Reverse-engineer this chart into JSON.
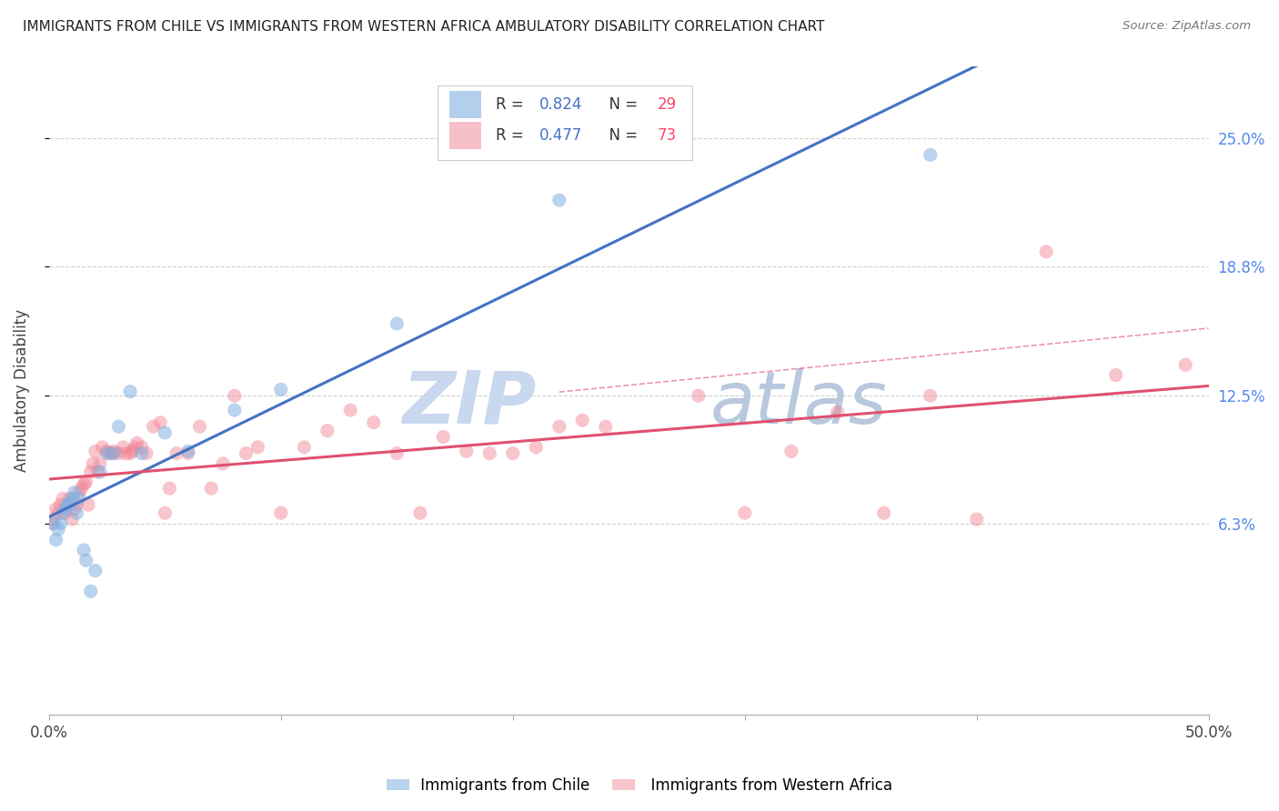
{
  "title": "IMMIGRANTS FROM CHILE VS IMMIGRANTS FROM WESTERN AFRICA AMBULATORY DISABILITY CORRELATION CHART",
  "source": "Source: ZipAtlas.com",
  "ylabel": "Ambulatory Disability",
  "xlim": [
    0.0,
    0.5
  ],
  "ylim": [
    -0.03,
    0.285
  ],
  "xtick_positions": [
    0.0,
    0.1,
    0.2,
    0.3,
    0.4,
    0.5
  ],
  "xticklabels": [
    "0.0%",
    "",
    "",
    "",
    "",
    "50.0%"
  ],
  "ytick_positions": [
    0.063,
    0.125,
    0.188,
    0.25
  ],
  "ytick_labels": [
    "6.3%",
    "12.5%",
    "18.8%",
    "25.0%"
  ],
  "R_chile": 0.824,
  "N_chile": 29,
  "R_africa": 0.477,
  "N_africa": 73,
  "color_chile": "#82B0E0",
  "color_africa": "#F08090",
  "color_line_chile": "#4472C4",
  "color_line_africa": "#E05070",
  "watermark_zip": "ZIP",
  "watermark_atlas": "atlas",
  "chile_x": [
    0.002,
    0.003,
    0.004,
    0.005,
    0.006,
    0.007,
    0.008,
    0.009,
    0.01,
    0.011,
    0.012,
    0.013,
    0.015,
    0.016,
    0.018,
    0.02,
    0.022,
    0.025,
    0.028,
    0.03,
    0.035,
    0.04,
    0.05,
    0.06,
    0.08,
    0.1,
    0.15,
    0.22,
    0.38
  ],
  "chile_y": [
    0.063,
    0.055,
    0.06,
    0.063,
    0.068,
    0.07,
    0.072,
    0.073,
    0.075,
    0.078,
    0.068,
    0.075,
    0.05,
    0.045,
    0.03,
    0.04,
    0.088,
    0.097,
    0.097,
    0.11,
    0.127,
    0.097,
    0.107,
    0.098,
    0.118,
    0.128,
    0.16,
    0.22,
    0.242
  ],
  "africa_x": [
    0.001,
    0.002,
    0.003,
    0.004,
    0.005,
    0.006,
    0.007,
    0.008,
    0.009,
    0.01,
    0.011,
    0.012,
    0.013,
    0.014,
    0.015,
    0.016,
    0.017,
    0.018,
    0.019,
    0.02,
    0.021,
    0.022,
    0.023,
    0.025,
    0.026,
    0.027,
    0.028,
    0.03,
    0.032,
    0.033,
    0.035,
    0.036,
    0.037,
    0.038,
    0.04,
    0.042,
    0.045,
    0.048,
    0.05,
    0.052,
    0.055,
    0.06,
    0.065,
    0.07,
    0.075,
    0.08,
    0.085,
    0.09,
    0.1,
    0.11,
    0.12,
    0.13,
    0.14,
    0.15,
    0.16,
    0.17,
    0.18,
    0.19,
    0.2,
    0.21,
    0.22,
    0.23,
    0.24,
    0.28,
    0.3,
    0.32,
    0.34,
    0.36,
    0.38,
    0.4,
    0.43,
    0.46,
    0.49
  ],
  "africa_y": [
    0.063,
    0.065,
    0.07,
    0.068,
    0.072,
    0.075,
    0.068,
    0.072,
    0.075,
    0.065,
    0.07,
    0.072,
    0.078,
    0.08,
    0.082,
    0.083,
    0.072,
    0.088,
    0.092,
    0.098,
    0.088,
    0.092,
    0.1,
    0.098,
    0.097,
    0.097,
    0.098,
    0.097,
    0.1,
    0.097,
    0.097,
    0.098,
    0.1,
    0.102,
    0.1,
    0.097,
    0.11,
    0.112,
    0.068,
    0.08,
    0.097,
    0.097,
    0.11,
    0.08,
    0.092,
    0.125,
    0.097,
    0.1,
    0.068,
    0.1,
    0.108,
    0.118,
    0.112,
    0.097,
    0.068,
    0.105,
    0.098,
    0.097,
    0.097,
    0.1,
    0.11,
    0.113,
    0.11,
    0.125,
    0.068,
    0.098,
    0.117,
    0.068,
    0.125,
    0.065,
    0.195,
    0.135,
    0.14
  ]
}
